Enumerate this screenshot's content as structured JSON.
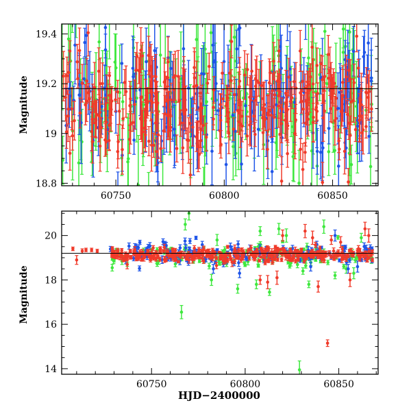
{
  "chart_data": [
    {
      "type": "scatter",
      "title": "",
      "xlabel": "",
      "ylabel": "Magnitude",
      "xlim": [
        60725,
        60871
      ],
      "ylim": [
        19.44,
        18.79
      ],
      "y_inverted": true,
      "xticks": [
        60750,
        60800,
        60850
      ],
      "xtick_labels": [
        "60750",
        "60800",
        "60850"
      ],
      "yticks": [
        18.8,
        19,
        19.2,
        19.4
      ],
      "ytick_labels": [
        "18.8",
        "19",
        "19.2",
        "19.4"
      ],
      "grid": false,
      "reference_line": {
        "y": 19.18,
        "x_range": [
          60725,
          60871
        ]
      },
      "series": [
        {
          "color": "#3fe83f",
          "x_range": [
            60725,
            60868
          ],
          "n_points": 150,
          "center": 19.12,
          "scatter": 0.16,
          "err": 0.14
        },
        {
          "color": "#1f55e8",
          "x_range": [
            60726,
            60868
          ],
          "n_points": 160,
          "center": 19.12,
          "scatter": 0.13,
          "err": 0.11
        },
        {
          "color": "#f03a2a",
          "x_range": [
            60725,
            60868
          ],
          "n_points": 330,
          "center": 19.11,
          "scatter": 0.1,
          "err": 0.07
        }
      ]
    },
    {
      "type": "scatter",
      "title": "",
      "xlabel": "HJD−2400000",
      "ylabel": "Magnitude",
      "xlim": [
        60702,
        60871
      ],
      "ylim": [
        21.1,
        13.75
      ],
      "y_inverted": true,
      "xticks": [
        60750,
        60800,
        60850
      ],
      "xtick_labels": [
        "60750",
        "60800",
        "60850"
      ],
      "yticks": [
        14,
        16,
        18,
        20
      ],
      "ytick_labels": [
        "14",
        "16",
        "18",
        "20"
      ],
      "grid": false,
      "reference_line": {
        "y": 19.2,
        "x_range": [
          60702,
          60871
        ]
      },
      "series": [
        {
          "color": "#3fe83f",
          "x_range": [
            60727,
            60868
          ],
          "n_points": 150,
          "center": 19.1,
          "scatter": 0.25,
          "err": 0.1,
          "outliers": [
            {
              "x": 60729,
              "y": 18.55,
              "err": 0.15
            },
            {
              "x": 60766,
              "y": 16.55,
              "err": 0.3
            },
            {
              "x": 60768,
              "y": 20.5,
              "err": 0.25
            },
            {
              "x": 60770,
              "y": 21.0,
              "err": 0.3
            },
            {
              "x": 60782,
              "y": 18.0,
              "err": 0.25
            },
            {
              "x": 60785,
              "y": 19.8,
              "err": 0.25
            },
            {
              "x": 60796,
              "y": 17.6,
              "err": 0.2
            },
            {
              "x": 60806,
              "y": 17.8,
              "err": 0.2
            },
            {
              "x": 60808,
              "y": 20.2,
              "err": 0.2
            },
            {
              "x": 60813,
              "y": 17.45,
              "err": 0.15
            },
            {
              "x": 60818,
              "y": 20.3,
              "err": 0.25
            },
            {
              "x": 60822,
              "y": 20.0,
              "err": 0.3
            },
            {
              "x": 60829,
              "y": 13.95,
              "err": 0.4
            },
            {
              "x": 60834,
              "y": 17.8,
              "err": 0.15
            },
            {
              "x": 60842,
              "y": 20.4,
              "err": 0.3
            },
            {
              "x": 60848,
              "y": 18.2,
              "err": 0.15
            },
            {
              "x": 60854,
              "y": 18.5,
              "err": 0.2
            },
            {
              "x": 60858,
              "y": 18.3,
              "err": 0.25
            },
            {
              "x": 60862,
              "y": 19.9,
              "err": 0.2
            }
          ]
        },
        {
          "color": "#1f55e8",
          "x_range": [
            60728,
            60868
          ],
          "n_points": 150,
          "center": 19.15,
          "scatter": 0.22,
          "err": 0.12,
          "outliers": [
            {
              "x": 60783,
              "y": 18.5,
              "err": 0.2
            },
            {
              "x": 60797,
              "y": 18.3,
              "err": 0.2
            },
            {
              "x": 60835,
              "y": 18.6,
              "err": 0.2
            },
            {
              "x": 60848,
              "y": 20.0,
              "err": 0.25
            },
            {
              "x": 60855,
              "y": 18.5,
              "err": 0.2
            },
            {
              "x": 60860,
              "y": 18.6,
              "err": 0.25
            }
          ]
        },
        {
          "color": "#f03a2a",
          "x_range": [
            60727,
            60868
          ],
          "n_points": 360,
          "center": 19.15,
          "scatter": 0.15,
          "err": 0.1,
          "outliers": [
            {
              "x": 60708,
              "y": 19.4,
              "err": 0.08
            },
            {
              "x": 60710,
              "y": 18.9,
              "err": 0.2
            },
            {
              "x": 60713,
              "y": 19.3,
              "err": 0.1
            },
            {
              "x": 60715,
              "y": 19.35,
              "err": 0.08
            },
            {
              "x": 60718,
              "y": 19.35,
              "err": 0.08
            },
            {
              "x": 60721,
              "y": 19.3,
              "err": 0.08
            },
            {
              "x": 60737,
              "y": 18.7,
              "err": 0.2
            },
            {
              "x": 60770,
              "y": 18.9,
              "err": 0.15
            },
            {
              "x": 60793,
              "y": 18.8,
              "err": 0.2
            },
            {
              "x": 60808,
              "y": 18.0,
              "err": 0.2
            },
            {
              "x": 60812,
              "y": 17.9,
              "err": 0.3
            },
            {
              "x": 60817,
              "y": 18.1,
              "err": 0.3
            },
            {
              "x": 60820,
              "y": 20.0,
              "err": 0.25
            },
            {
              "x": 60832,
              "y": 20.2,
              "err": 0.3
            },
            {
              "x": 60836,
              "y": 19.9,
              "err": 0.3
            },
            {
              "x": 60839,
              "y": 17.7,
              "err": 0.25
            },
            {
              "x": 60844,
              "y": 15.15,
              "err": 0.15
            },
            {
              "x": 60846,
              "y": 19.8,
              "err": 0.2
            },
            {
              "x": 60851,
              "y": 19.7,
              "err": 0.25
            },
            {
              "x": 60856,
              "y": 18.0,
              "err": 0.3
            },
            {
              "x": 60864,
              "y": 20.3,
              "err": 0.3
            },
            {
              "x": 60866,
              "y": 20.0,
              "err": 0.3
            }
          ]
        }
      ]
    }
  ]
}
